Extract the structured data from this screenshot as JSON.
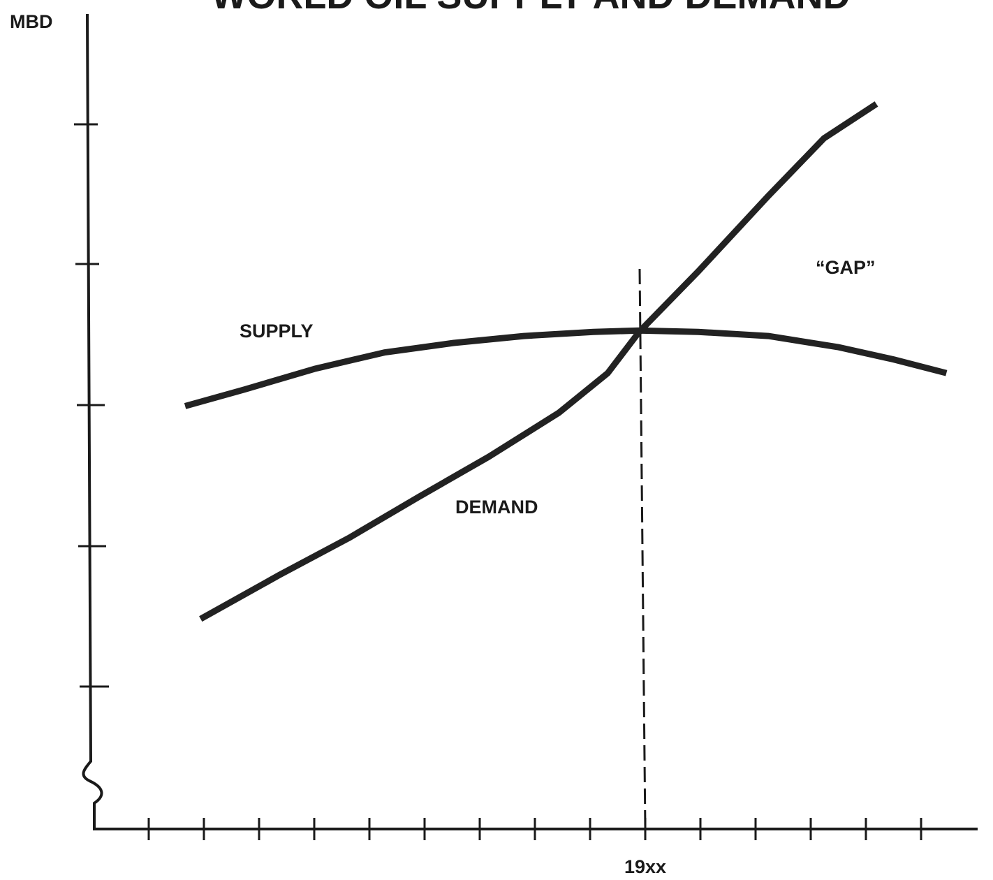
{
  "chart_data": {
    "type": "line",
    "title": "WORLD OIL SUPPLY AND DEMAND",
    "ylabel": "MBD",
    "xlim": [
      -1,
      15
    ],
    "ylim": [
      0,
      5.9
    ],
    "xticks": [
      0,
      1,
      2,
      3,
      4,
      5,
      6,
      7,
      8,
      {
        "value": 9,
        "label": "19xx"
      },
      10,
      11,
      12,
      13,
      14
    ],
    "series": [
      {
        "name": "SUPPLY",
        "color": "#222222",
        "x": [
          0.66,
          1.73,
          3.0,
          4.27,
          5.53,
          6.8,
          8.06,
          8.89,
          9.96,
          11.23,
          12.49,
          13.5,
          14.46
        ],
        "values": [
          3.07,
          3.19,
          3.34,
          3.46,
          3.53,
          3.58,
          3.61,
          3.62,
          3.61,
          3.58,
          3.5,
          3.41,
          3.31
        ]
      },
      {
        "name": "DEMAND",
        "color": "#222222",
        "x": [
          0.94,
          2.37,
          3.63,
          4.9,
          6.16,
          7.43,
          8.32,
          8.89,
          9.96,
          11.23,
          12.24,
          13.19
        ],
        "values": [
          1.52,
          1.84,
          2.11,
          2.41,
          2.7,
          3.02,
          3.31,
          3.61,
          4.05,
          4.6,
          5.02,
          5.27
        ]
      }
    ],
    "annotations": [
      "“GAP”"
    ]
  }
}
